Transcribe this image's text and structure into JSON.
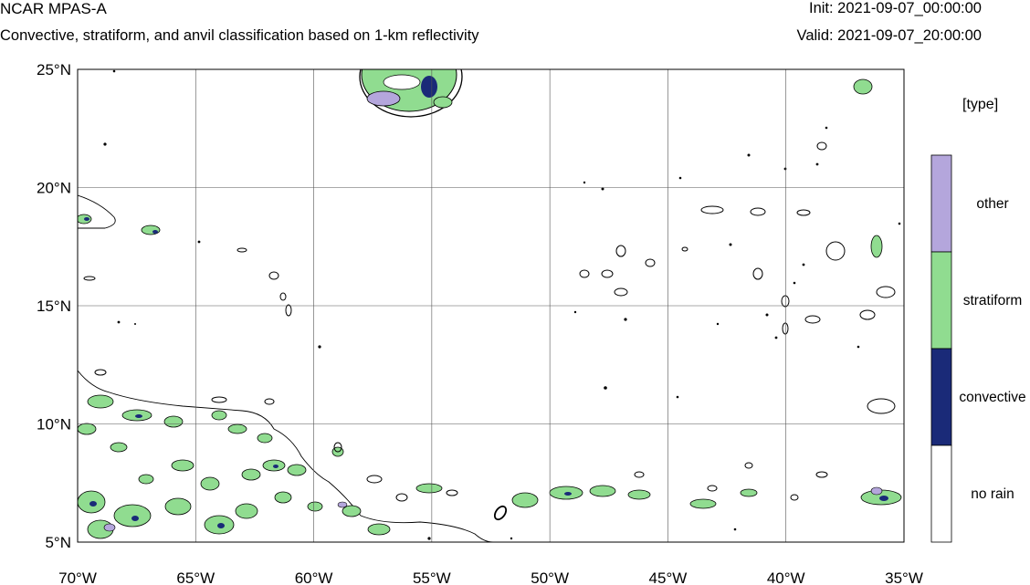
{
  "header": {
    "title": "NCAR MPAS-A",
    "subtitle": "Convective, stratiform, and anvil classification based on 1-km reflectivity",
    "init": "Init: 2021-09-07_00:00:00",
    "valid": "Valid: 2021-09-07_20:00:00"
  },
  "map": {
    "lon_range": [
      -70,
      -35
    ],
    "lat_range": [
      5,
      25
    ],
    "lon_ticks": [
      {
        "value": -70,
        "label": "70°W"
      },
      {
        "value": -65,
        "label": "65°W"
      },
      {
        "value": -60,
        "label": "60°W"
      },
      {
        "value": -55,
        "label": "55°W"
      },
      {
        "value": -50,
        "label": "50°W"
      },
      {
        "value": -45,
        "label": "45°W"
      },
      {
        "value": -40,
        "label": "40°W"
      },
      {
        "value": -35,
        "label": "35°W"
      }
    ],
    "lat_ticks": [
      {
        "value": 25,
        "label": "25°N"
      },
      {
        "value": 20,
        "label": "20°N"
      },
      {
        "value": 15,
        "label": "15°N"
      },
      {
        "value": 10,
        "label": "10°N"
      },
      {
        "value": 5,
        "label": "5°N"
      }
    ],
    "gridlines": true,
    "colors": {
      "stratiform": "#90dc90",
      "convective": "#1a2a78",
      "other": "#b4a6dc",
      "no_rain": "#ffffff",
      "contour": "#000000"
    }
  },
  "legend": {
    "title": "[type]",
    "items": [
      {
        "label": "other",
        "color": "#b4a6dc"
      },
      {
        "label": "stratiform",
        "color": "#90dc90"
      },
      {
        "label": "convective",
        "color": "#1a2a78"
      },
      {
        "label": "no rain",
        "color": "#ffffff"
      }
    ]
  }
}
